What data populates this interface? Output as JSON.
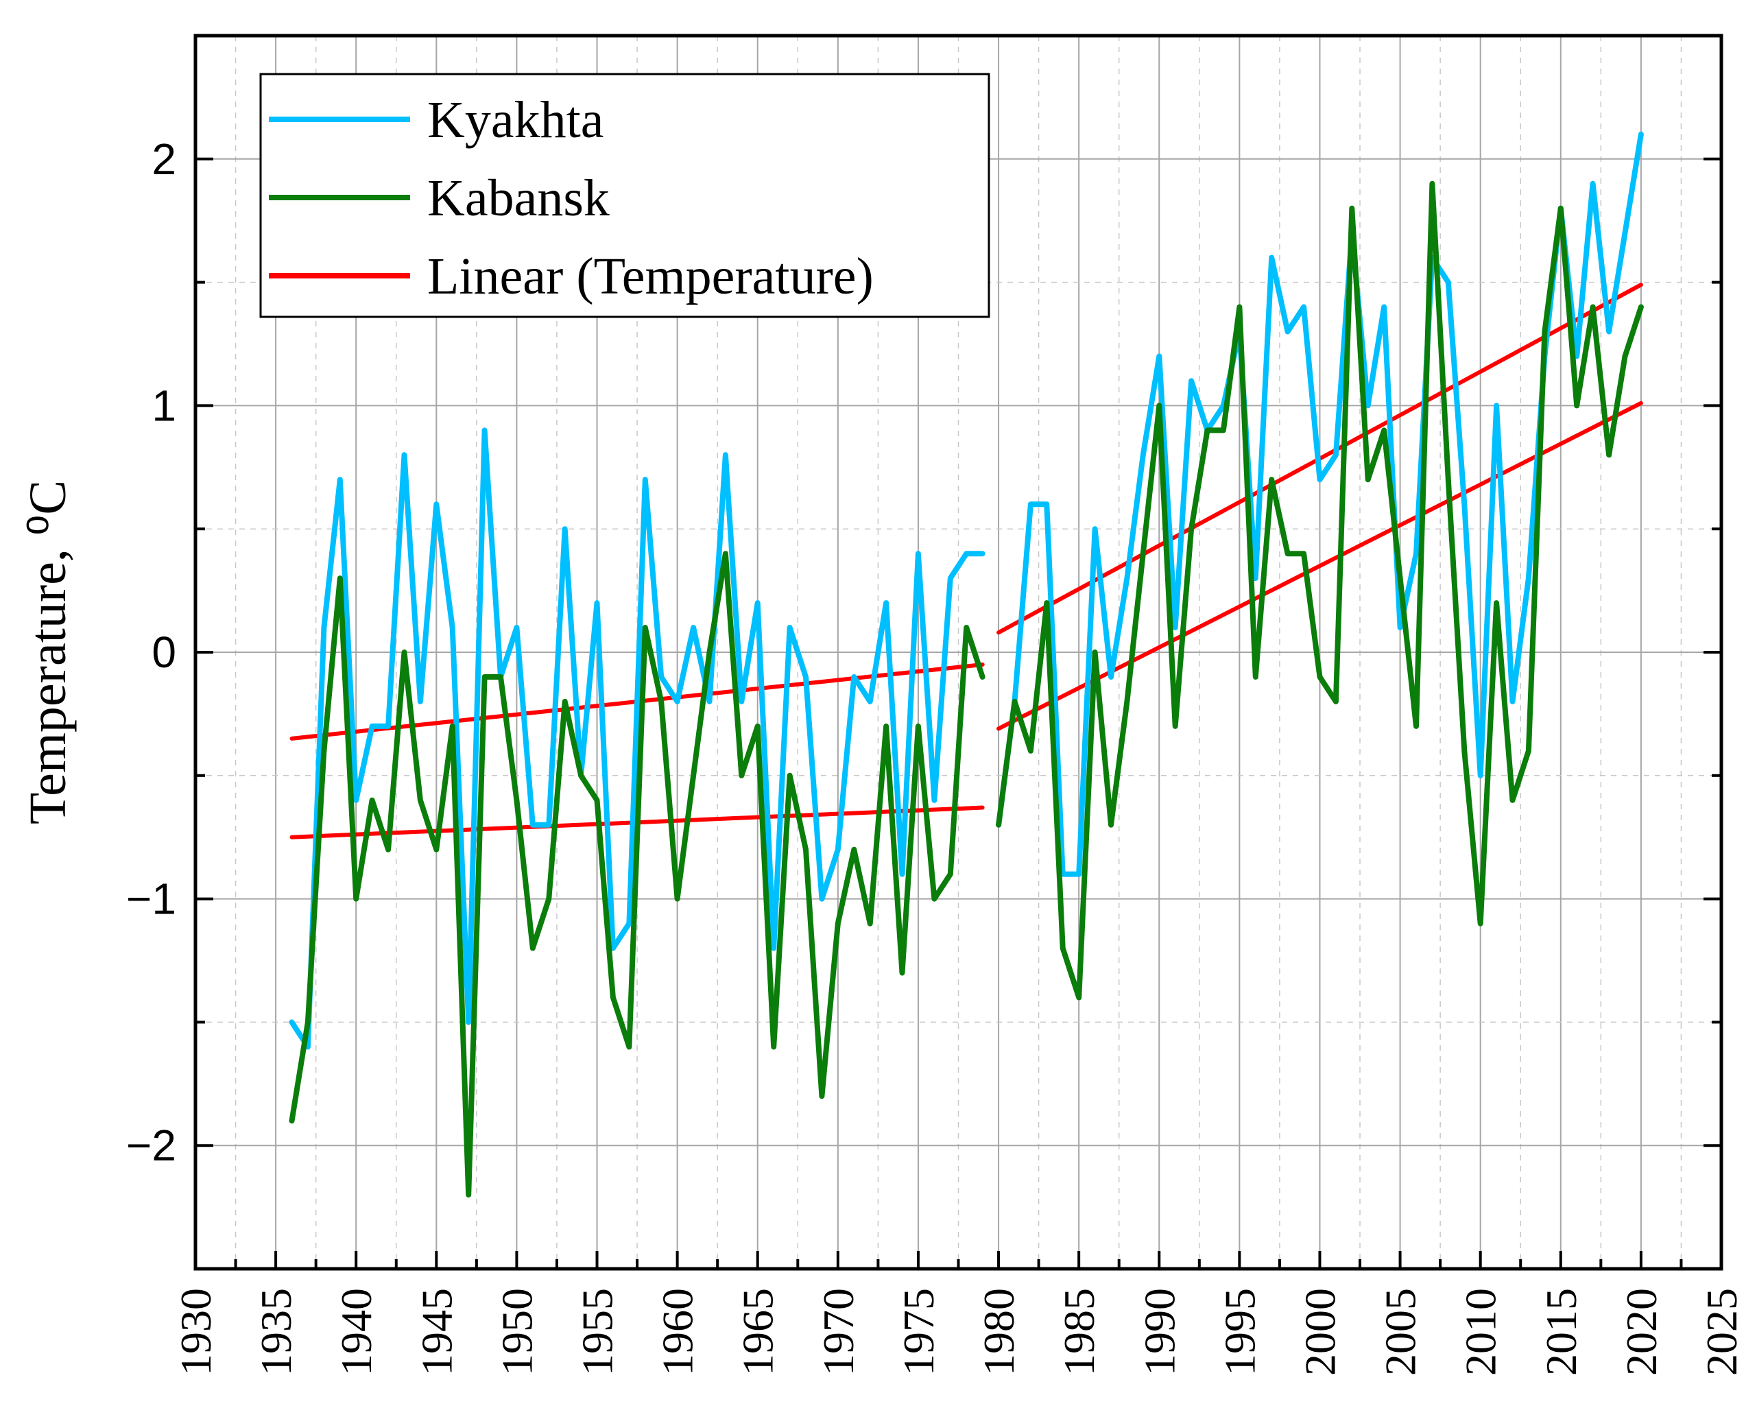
{
  "chart_data": {
    "type": "line",
    "title": "",
    "xlabel": "",
    "ylabel": "Temperature, ⁰C",
    "xlim": [
      1930,
      2025
    ],
    "ylim": [
      -2.5,
      2.5
    ],
    "x_ticks": [
      1930,
      1935,
      1940,
      1945,
      1950,
      1955,
      1960,
      1965,
      1970,
      1975,
      1980,
      1985,
      1990,
      1995,
      2000,
      2005,
      2010,
      2015,
      2020,
      2025
    ],
    "y_ticks": [
      -2,
      -1,
      0,
      1,
      2
    ],
    "y_tick_labels": [
      "−2",
      "−1",
      "0",
      "1",
      "2"
    ],
    "grid": true,
    "legend_position": "top-left",
    "series": [
      {
        "name": "Kyakhta",
        "color": "#00bfff",
        "x": [
          1936,
          1937,
          1938,
          1939,
          1940,
          1941,
          1942,
          1943,
          1944,
          1945,
          1946,
          1947,
          1948,
          1949,
          1950,
          1951,
          1952,
          1953,
          1954,
          1955,
          1956,
          1957,
          1958,
          1959,
          1960,
          1961,
          1962,
          1963,
          1964,
          1965,
          1966,
          1967,
          1968,
          1969,
          1970,
          1971,
          1972,
          1973,
          1974,
          1975,
          1976,
          1977,
          1978,
          1979,
          null,
          1980,
          1981,
          1982,
          1983,
          1984,
          1985,
          1986,
          1987,
          1988,
          1989,
          1990,
          1991,
          1992,
          1993,
          1994,
          1995,
          1996,
          1997,
          1998,
          1999,
          2000,
          2001,
          2002,
          2003,
          2004,
          2005,
          2006,
          2007,
          2008,
          2009,
          2010,
          2011,
          2012,
          2013,
          2014,
          2015,
          2016,
          2017,
          2018,
          2019,
          2020
        ],
        "values": [
          -1.5,
          -1.6,
          0.1,
          0.7,
          -0.6,
          -0.3,
          -0.3,
          0.8,
          -0.2,
          0.6,
          0.1,
          -1.5,
          0.9,
          -0.1,
          0.1,
          -0.7,
          -0.7,
          0.5,
          -0.5,
          0.2,
          -1.2,
          -1.1,
          0.7,
          -0.1,
          -0.2,
          0.1,
          -0.2,
          0.8,
          -0.2,
          0.2,
          -1.2,
          0.1,
          -0.1,
          -1.0,
          -0.8,
          -0.1,
          -0.2,
          0.2,
          -0.9,
          0.4,
          -0.6,
          0.3,
          0.4,
          0.4,
          null,
          -0.7,
          -0.2,
          0.6,
          0.6,
          -0.9,
          -0.9,
          0.5,
          -0.1,
          0.3,
          0.8,
          1.2,
          0.1,
          1.1,
          0.9,
          1.0,
          1.3,
          0.3,
          1.6,
          1.3,
          1.4,
          0.7,
          0.8,
          1.7,
          1.0,
          1.4,
          0.1,
          0.4,
          1.6,
          1.5,
          0.6,
          -0.5,
          1.0,
          -0.2,
          0.3,
          1.2,
          1.8,
          1.2,
          1.9,
          1.3,
          1.7,
          2.1
        ]
      },
      {
        "name": "Kabansk",
        "color": "#0a7d0a",
        "x": [
          1936,
          1937,
          1938,
          1939,
          1940,
          1941,
          1942,
          1943,
          1944,
          1945,
          1946,
          1947,
          1948,
          1949,
          1950,
          1951,
          1952,
          1953,
          1954,
          1955,
          1956,
          1957,
          1958,
          1959,
          1960,
          1961,
          1962,
          1963,
          1964,
          1965,
          1966,
          1967,
          1968,
          1969,
          1970,
          1971,
          1972,
          1973,
          1974,
          1975,
          1976,
          1977,
          1978,
          1979,
          null,
          1980,
          1981,
          1982,
          1983,
          1984,
          1985,
          1986,
          1987,
          1988,
          1989,
          1990,
          1991,
          1992,
          1993,
          1994,
          1995,
          1996,
          1997,
          1998,
          1999,
          2000,
          2001,
          2002,
          2003,
          2004,
          2005,
          2006,
          2007,
          2008,
          2009,
          2010,
          2011,
          2012,
          2013,
          2014,
          2015,
          2016,
          2017,
          2018,
          2019,
          2020
        ],
        "values": [
          -1.9,
          -1.5,
          -0.4,
          0.3,
          -1.0,
          -0.6,
          -0.8,
          0.0,
          -0.6,
          -0.8,
          -0.3,
          -2.2,
          -0.1,
          -0.1,
          -0.6,
          -1.2,
          -1.0,
          -0.2,
          -0.5,
          -0.6,
          -1.4,
          -1.6,
          0.1,
          -0.2,
          -1.0,
          -0.5,
          0.0,
          0.4,
          -0.5,
          -0.3,
          -1.6,
          -0.5,
          -0.8,
          -1.8,
          -1.1,
          -0.8,
          -1.1,
          -0.3,
          -1.3,
          -0.3,
          -1.0,
          -0.9,
          0.1,
          -0.1,
          null,
          -0.7,
          -0.2,
          -0.4,
          0.2,
          -1.2,
          -1.4,
          0.0,
          -0.7,
          -0.2,
          0.4,
          1.0,
          -0.3,
          0.5,
          0.9,
          0.9,
          1.4,
          -0.1,
          0.7,
          0.4,
          0.4,
          -0.1,
          -0.2,
          1.8,
          0.7,
          0.9,
          0.3,
          -0.3,
          1.9,
          0.7,
          -0.4,
          -1.1,
          0.2,
          -0.6,
          -0.4,
          1.3,
          1.8,
          1.0,
          1.4,
          0.8,
          1.2,
          1.4
        ]
      }
    ],
    "trendlines": {
      "name": "Linear (Temperature)",
      "color": "#ff0000",
      "lines": [
        {
          "x": [
            1936,
            1979
          ],
          "values": [
            -0.35,
            -0.05
          ]
        },
        {
          "x": [
            1936,
            1979
          ],
          "values": [
            -0.75,
            -0.63
          ]
        },
        {
          "x": [
            1980,
            2020
          ],
          "values": [
            0.08,
            1.49
          ]
        },
        {
          "x": [
            1980,
            2020
          ],
          "values": [
            -0.31,
            1.01
          ]
        }
      ]
    },
    "legend": [
      "Kyakhta",
      "Kabansk",
      "Linear (Temperature)"
    ]
  }
}
